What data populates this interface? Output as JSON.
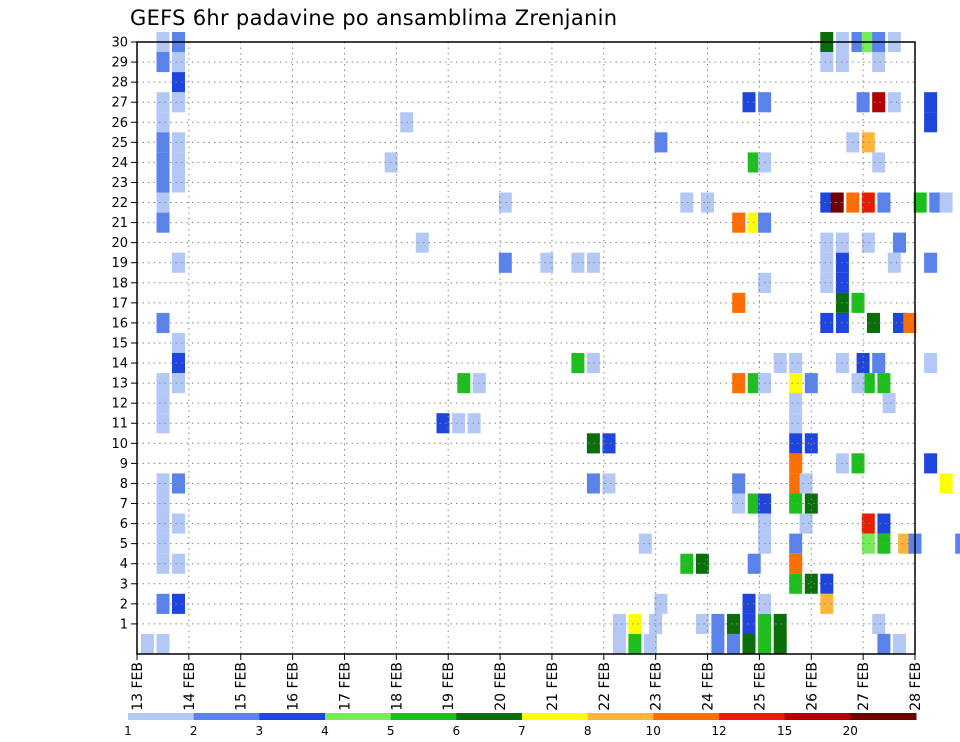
{
  "chart_data": {
    "type": "heatmap",
    "title": "GEFS 6hr padavine po ansamblima Zrenjanin",
    "x_ticks": [
      "13 FEB",
      "14 FEB",
      "15 FEB",
      "16 FEB",
      "17 FEB",
      "18 FEB",
      "19 FEB",
      "20 FEB",
      "21 FEB",
      "22 FEB",
      "23 FEB",
      "24 FEB",
      "25 FEB",
      "26 FEB",
      "27 FEB",
      "28 FEB"
    ],
    "y_ticks": [
      1,
      2,
      3,
      4,
      5,
      6,
      7,
      8,
      9,
      10,
      11,
      12,
      13,
      14,
      15,
      16,
      17,
      18,
      19,
      20,
      21,
      22,
      23,
      24,
      25,
      26,
      27,
      28,
      29,
      30
    ],
    "x_range": [
      "13 FEB",
      "28 FEB"
    ],
    "y_range": [
      0,
      30
    ],
    "grid": true,
    "colorbar": {
      "labels": [
        "1",
        "2",
        "3",
        "4",
        "5",
        "6",
        "7",
        "8",
        "10",
        "12",
        "15",
        "20"
      ],
      "colors": [
        "#b4c8f5",
        "#5a82eb",
        "#1e46dc",
        "#78eb5a",
        "#1ebe1e",
        "#0a6e0a",
        "#ffff00",
        "#ffb43c",
        "#ff6e00",
        "#e61e00",
        "#b40000",
        "#6e0000"
      ]
    },
    "cells_note": "precipitation per ensemble member (y) and 6h step (x); value = colorbar bin index",
    "cells": [
      [
        0.5,
        30,
        1
      ],
      [
        0.8,
        30,
        2
      ],
      [
        0.5,
        29,
        2
      ],
      [
        0.8,
        29,
        1
      ],
      [
        0.8,
        28,
        3
      ],
      [
        0.5,
        27,
        1
      ],
      [
        0.8,
        27,
        1
      ],
      [
        0.5,
        26,
        1
      ],
      [
        0.5,
        25,
        2
      ],
      [
        0.8,
        25,
        1
      ],
      [
        0.5,
        24,
        2
      ],
      [
        0.8,
        24,
        1
      ],
      [
        0.5,
        23,
        2
      ],
      [
        0.8,
        23,
        1
      ],
      [
        0.5,
        22,
        1
      ],
      [
        0.5,
        21,
        2
      ],
      [
        0.8,
        19,
        1
      ],
      [
        0.5,
        16,
        2
      ],
      [
        0.8,
        15,
        1
      ],
      [
        0.8,
        14,
        3
      ],
      [
        0.5,
        13,
        1
      ],
      [
        0.8,
        13,
        1
      ],
      [
        0.5,
        12,
        1
      ],
      [
        0.5,
        11,
        1
      ],
      [
        0.5,
        8,
        1
      ],
      [
        0.8,
        8,
        2
      ],
      [
        0.5,
        7,
        1
      ],
      [
        0.5,
        6,
        1
      ],
      [
        0.8,
        6,
        1
      ],
      [
        0.5,
        5,
        1
      ],
      [
        0.5,
        4,
        1
      ],
      [
        0.8,
        4,
        1
      ],
      [
        0.5,
        2,
        2
      ],
      [
        0.8,
        2,
        3
      ],
      [
        0.2,
        0,
        1
      ],
      [
        0.5,
        0,
        1
      ],
      [
        5.2,
        26,
        1
      ],
      [
        4.9,
        24,
        1
      ],
      [
        5.5,
        20,
        1
      ],
      [
        7.1,
        22,
        1
      ],
      [
        7.9,
        19,
        1
      ],
      [
        7.1,
        19,
        2
      ],
      [
        8.5,
        19,
        1
      ],
      [
        8.8,
        19,
        1
      ],
      [
        8.5,
        14,
        5
      ],
      [
        8.8,
        14,
        1
      ],
      [
        6.3,
        13,
        5
      ],
      [
        6.6,
        13,
        1
      ],
      [
        5.9,
        11,
        3
      ],
      [
        6.2,
        11,
        1
      ],
      [
        6.5,
        11,
        1
      ],
      [
        8.8,
        10,
        6
      ],
      [
        9.1,
        10,
        3
      ],
      [
        8.8,
        8,
        2
      ],
      [
        9.1,
        8,
        1
      ],
      [
        9.8,
        5,
        1
      ],
      [
        10.0,
        1,
        1
      ],
      [
        9.3,
        1,
        1
      ],
      [
        9.6,
        1,
        7
      ],
      [
        10.1,
        2,
        1
      ],
      [
        9.3,
        0,
        1
      ],
      [
        9.6,
        0,
        5
      ],
      [
        9.9,
        0,
        1
      ],
      [
        10.1,
        25,
        2
      ],
      [
        10.6,
        22,
        1
      ],
      [
        11.0,
        22,
        1
      ],
      [
        10.6,
        4,
        5
      ],
      [
        10.9,
        4,
        6
      ],
      [
        10.9,
        1,
        1
      ],
      [
        11.2,
        1,
        2
      ],
      [
        11.5,
        1,
        6
      ],
      [
        11.8,
        1,
        3
      ],
      [
        11.8,
        2,
        3
      ],
      [
        11.2,
        0,
        2
      ],
      [
        11.5,
        0,
        2
      ],
      [
        11.8,
        0,
        6
      ],
      [
        11.8,
        27,
        3
      ],
      [
        12.1,
        27,
        2
      ],
      [
        11.9,
        24,
        5
      ],
      [
        12.1,
        24,
        1
      ],
      [
        11.6,
        21,
        9
      ],
      [
        11.9,
        21,
        7
      ],
      [
        12.1,
        21,
        2
      ],
      [
        12.1,
        18,
        1
      ],
      [
        11.6,
        17,
        9
      ],
      [
        11.6,
        13,
        9
      ],
      [
        11.9,
        13,
        5
      ],
      [
        12.1,
        13,
        1
      ],
      [
        11.6,
        8,
        2
      ],
      [
        11.6,
        7,
        1
      ],
      [
        11.9,
        7,
        5
      ],
      [
        12.1,
        7,
        3
      ],
      [
        12.1,
        6,
        1
      ],
      [
        12.1,
        5,
        1
      ],
      [
        11.9,
        4,
        2
      ],
      [
        12.1,
        2,
        1
      ],
      [
        12.1,
        1,
        5
      ],
      [
        12.4,
        1,
        6
      ],
      [
        12.1,
        0,
        5
      ],
      [
        12.4,
        0,
        6
      ],
      [
        12.4,
        14,
        1
      ],
      [
        12.7,
        14,
        1
      ],
      [
        12.7,
        13,
        7
      ],
      [
        13.0,
        13,
        2
      ],
      [
        12.7,
        12,
        1
      ],
      [
        12.7,
        11,
        1
      ],
      [
        12.7,
        10,
        3
      ],
      [
        13.0,
        10,
        3
      ],
      [
        12.7,
        9,
        9
      ],
      [
        12.7,
        8,
        9
      ],
      [
        12.7,
        7,
        5
      ],
      [
        13.0,
        7,
        6
      ],
      [
        12.7,
        5,
        2
      ],
      [
        12.7,
        4,
        9
      ],
      [
        12.7,
        3,
        5
      ],
      [
        13.0,
        3,
        6
      ],
      [
        13.3,
        3,
        3
      ],
      [
        13.3,
        2,
        8
      ],
      [
        12.9,
        8,
        1
      ],
      [
        12.9,
        6,
        1
      ],
      [
        13.6,
        9,
        1
      ],
      [
        13.9,
        9,
        5
      ],
      [
        13.3,
        22,
        3
      ],
      [
        13.5,
        22,
        12
      ],
      [
        13.8,
        22,
        9
      ],
      [
        14.1,
        22,
        10
      ],
      [
        14.4,
        22,
        2
      ],
      [
        13.3,
        20,
        1
      ],
      [
        13.6,
        20,
        1
      ],
      [
        14.1,
        20,
        1
      ],
      [
        14.7,
        20,
        2
      ],
      [
        13.3,
        19,
        1
      ],
      [
        13.6,
        19,
        3
      ],
      [
        13.6,
        18,
        3
      ],
      [
        13.3,
        18,
        1
      ],
      [
        13.6,
        17,
        6
      ],
      [
        13.9,
        17,
        5
      ],
      [
        13.6,
        16,
        3
      ],
      [
        13.3,
        16,
        3
      ],
      [
        14.2,
        16,
        6
      ],
      [
        14.7,
        16,
        3
      ],
      [
        14.9,
        16,
        9
      ],
      [
        13.6,
        14,
        1
      ],
      [
        14.0,
        14,
        3
      ],
      [
        14.3,
        14,
        2
      ],
      [
        14.1,
        13,
        5
      ],
      [
        14.4,
        13,
        5
      ],
      [
        13.9,
        13,
        1
      ],
      [
        14.5,
        12,
        1
      ],
      [
        14.0,
        27,
        2
      ],
      [
        14.3,
        27,
        11
      ],
      [
        14.6,
        27,
        1
      ],
      [
        13.8,
        25,
        1
      ],
      [
        14.1,
        25,
        8
      ],
      [
        14.3,
        24,
        1
      ],
      [
        13.3,
        30,
        6
      ],
      [
        13.6,
        30,
        1
      ],
      [
        13.9,
        30,
        2
      ],
      [
        14.1,
        30,
        4
      ],
      [
        14.3,
        30,
        2
      ],
      [
        14.6,
        30,
        1
      ],
      [
        13.3,
        29,
        1
      ],
      [
        13.6,
        29,
        1
      ],
      [
        14.3,
        29,
        1
      ],
      [
        14.1,
        6,
        10
      ],
      [
        14.4,
        6,
        3
      ],
      [
        14.1,
        5,
        4
      ],
      [
        14.4,
        5,
        5
      ],
      [
        14.8,
        5,
        8
      ],
      [
        15.0,
        5,
        2
      ],
      [
        14.3,
        1,
        1
      ],
      [
        14.4,
        0,
        2
      ],
      [
        14.7,
        0,
        1
      ],
      [
        14.6,
        19,
        1
      ],
      [
        15.3,
        19,
        2
      ],
      [
        15.3,
        14,
        1
      ],
      [
        15.3,
        27,
        3
      ],
      [
        15.3,
        26,
        3
      ],
      [
        15.1,
        22,
        5
      ],
      [
        15.4,
        22,
        2
      ],
      [
        15.6,
        22,
        1
      ],
      [
        15.6,
        8,
        7
      ],
      [
        15.3,
        9,
        3
      ],
      [
        15.9,
        5,
        2
      ]
    ]
  }
}
